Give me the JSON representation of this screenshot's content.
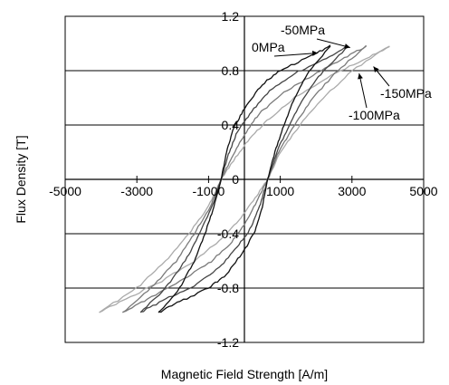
{
  "chart_data": {
    "type": "line",
    "title": "",
    "xlabel": "Magnetic Field Strength [A/m]",
    "ylabel": "Flux Density [T]",
    "xlim": [
      -5000,
      5000
    ],
    "ylim": [
      -1.2,
      1.2
    ],
    "x_ticks": [
      -5000,
      -3000,
      -1000,
      1000,
      3000,
      5000
    ],
    "y_ticks": [
      -1.2,
      -0.8,
      -0.4,
      0,
      0.4,
      0.8,
      1.2
    ],
    "x_tick_labels": [
      "-5000",
      "-3000",
      "-1000",
      "1000",
      "3000",
      "5000"
    ],
    "y_tick_labels": [
      "-1.2",
      "-0.8",
      "-0.4",
      "0",
      "0.4",
      "0.8",
      "1.2"
    ],
    "grid": "horizontal lines at y ticks",
    "series": [
      {
        "name": "0MPa",
        "color": "#111111",
        "peak": [
          2400,
          0.98
        ],
        "upper": [
          [
            2400,
            0.98
          ],
          [
            1800,
            0.9
          ],
          [
            1000,
            0.8
          ],
          [
            500,
            0.7
          ],
          [
            0,
            0.52
          ],
          [
            -300,
            0.38
          ],
          [
            -500,
            0.2
          ],
          [
            -650,
            0.0
          ],
          [
            -850,
            -0.2
          ],
          [
            -1100,
            -0.4
          ],
          [
            -1400,
            -0.6
          ],
          [
            -1800,
            -0.8
          ],
          [
            -2400,
            -0.98
          ]
        ],
        "lower": [
          [
            -2400,
            -0.98
          ],
          [
            -1800,
            -0.9
          ],
          [
            -1000,
            -0.8
          ],
          [
            -500,
            -0.7
          ],
          [
            0,
            -0.52
          ],
          [
            300,
            -0.38
          ],
          [
            500,
            -0.2
          ],
          [
            650,
            0.0
          ],
          [
            850,
            0.2
          ],
          [
            1100,
            0.4
          ],
          [
            1400,
            0.6
          ],
          [
            1800,
            0.8
          ],
          [
            2400,
            0.98
          ]
        ]
      },
      {
        "name": "-50MPa",
        "color": "#444444",
        "peak": [
          2900,
          0.98
        ],
        "upper": [
          [
            2900,
            0.98
          ],
          [
            2200,
            0.88
          ],
          [
            1400,
            0.78
          ],
          [
            700,
            0.65
          ],
          [
            200,
            0.5
          ],
          [
            -200,
            0.35
          ],
          [
            -450,
            0.18
          ],
          [
            -650,
            0.0
          ],
          [
            -900,
            -0.2
          ],
          [
            -1250,
            -0.4
          ],
          [
            -1650,
            -0.6
          ],
          [
            -2200,
            -0.8
          ],
          [
            -2900,
            -0.98
          ]
        ],
        "lower": [
          [
            -2900,
            -0.98
          ],
          [
            -2200,
            -0.88
          ],
          [
            -1400,
            -0.78
          ],
          [
            -700,
            -0.65
          ],
          [
            -200,
            -0.5
          ],
          [
            200,
            -0.35
          ],
          [
            450,
            -0.18
          ],
          [
            650,
            0.0
          ],
          [
            900,
            0.2
          ],
          [
            1250,
            0.4
          ],
          [
            1650,
            0.6
          ],
          [
            2200,
            0.8
          ],
          [
            2900,
            0.98
          ]
        ]
      },
      {
        "name": "-100MPa",
        "color": "#7a7a7a",
        "peak": [
          3400,
          0.98
        ],
        "upper": [
          [
            3400,
            0.98
          ],
          [
            2700,
            0.88
          ],
          [
            1800,
            0.75
          ],
          [
            1000,
            0.62
          ],
          [
            400,
            0.48
          ],
          [
            0,
            0.33
          ],
          [
            -350,
            0.16
          ],
          [
            -650,
            0.0
          ],
          [
            -950,
            -0.2
          ],
          [
            -1400,
            -0.4
          ],
          [
            -1900,
            -0.6
          ],
          [
            -2600,
            -0.8
          ],
          [
            -3400,
            -0.98
          ]
        ],
        "lower": [
          [
            -3400,
            -0.98
          ],
          [
            -2700,
            -0.88
          ],
          [
            -1800,
            -0.75
          ],
          [
            -1000,
            -0.62
          ],
          [
            -400,
            -0.48
          ],
          [
            0,
            -0.33
          ],
          [
            350,
            -0.16
          ],
          [
            650,
            0.0
          ],
          [
            950,
            0.2
          ],
          [
            1400,
            0.4
          ],
          [
            1900,
            0.6
          ],
          [
            2600,
            0.8
          ],
          [
            3400,
            0.98
          ]
        ]
      },
      {
        "name": "-150MPa",
        "color": "#aaaaaa",
        "peak": [
          4050,
          0.98
        ],
        "upper": [
          [
            4050,
            0.98
          ],
          [
            3300,
            0.88
          ],
          [
            2300,
            0.75
          ],
          [
            1400,
            0.6
          ],
          [
            700,
            0.45
          ],
          [
            150,
            0.3
          ],
          [
            -300,
            0.14
          ],
          [
            -650,
            0.0
          ],
          [
            -1000,
            -0.2
          ],
          [
            -1550,
            -0.4
          ],
          [
            -2200,
            -0.6
          ],
          [
            -3000,
            -0.8
          ],
          [
            -4050,
            -0.98
          ]
        ],
        "lower": [
          [
            -4050,
            -0.98
          ],
          [
            -3300,
            -0.88
          ],
          [
            -2300,
            -0.75
          ],
          [
            -1400,
            -0.6
          ],
          [
            -700,
            -0.45
          ],
          [
            -150,
            -0.3
          ],
          [
            300,
            -0.14
          ],
          [
            650,
            0.0
          ],
          [
            1000,
            0.2
          ],
          [
            1550,
            0.4
          ],
          [
            2200,
            0.6
          ],
          [
            3000,
            0.8
          ],
          [
            4050,
            0.98
          ]
        ]
      }
    ],
    "annotations": [
      {
        "text": "0MPa",
        "target": [
          2050,
          0.93
        ]
      },
      {
        "text": "-50MPa",
        "target": [
          2950,
          0.97
        ]
      },
      {
        "text": "-150MPa",
        "target": [
          3600,
          0.83
        ]
      },
      {
        "text": "-100MPa",
        "target": [
          3200,
          0.78
        ]
      }
    ]
  }
}
